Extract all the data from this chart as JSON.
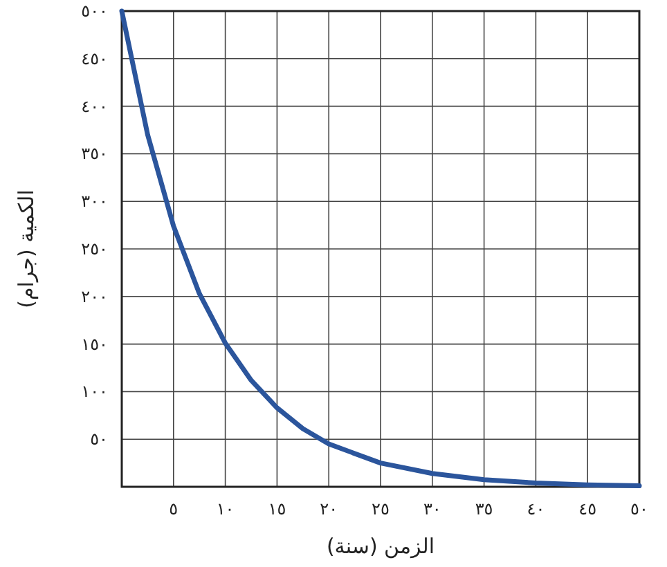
{
  "chart_data": {
    "type": "line",
    "xlabel": "الزمن (سنة)",
    "ylabel": "الكمية (جرام)",
    "x": [
      0,
      2.5,
      5,
      7.5,
      10,
      12.5,
      15,
      17.5,
      20,
      25,
      30,
      35,
      40,
      45,
      50
    ],
    "series": [
      {
        "color": "#2b559c",
        "values": [
          500,
          370,
          274,
          203,
          151,
          112,
          83,
          61,
          45,
          25,
          14,
          7.5,
          4,
          2,
          1
        ]
      }
    ],
    "xlim": [
      0,
      50
    ],
    "ylim": [
      0,
      500
    ],
    "xticks": [
      {
        "value": 5,
        "label": "٥"
      },
      {
        "value": 10,
        "label": "١٠"
      },
      {
        "value": 15,
        "label": "١٥"
      },
      {
        "value": 20,
        "label": "٢٠"
      },
      {
        "value": 25,
        "label": "٢٥"
      },
      {
        "value": 30,
        "label": "٣٠"
      },
      {
        "value": 35,
        "label": "٣٥"
      },
      {
        "value": 40,
        "label": "٤٠"
      },
      {
        "value": 45,
        "label": "٤٥"
      },
      {
        "value": 50,
        "label": "٥٠"
      }
    ],
    "yticks": [
      {
        "value": 50,
        "label": "٥٠"
      },
      {
        "value": 100,
        "label": "١٠٠"
      },
      {
        "value": 150,
        "label": "١٥٠"
      },
      {
        "value": 200,
        "label": "٢٠٠"
      },
      {
        "value": 250,
        "label": "٢٥٠"
      },
      {
        "value": 300,
        "label": "٣٠٠"
      },
      {
        "value": 350,
        "label": "٣٥٠"
      },
      {
        "value": 400,
        "label": "٤٠٠"
      },
      {
        "value": 450,
        "label": "٤٥٠"
      },
      {
        "value": 500,
        "label": "٥٠٠"
      }
    ],
    "grid": true,
    "marker": "none",
    "line_style": "solid"
  }
}
